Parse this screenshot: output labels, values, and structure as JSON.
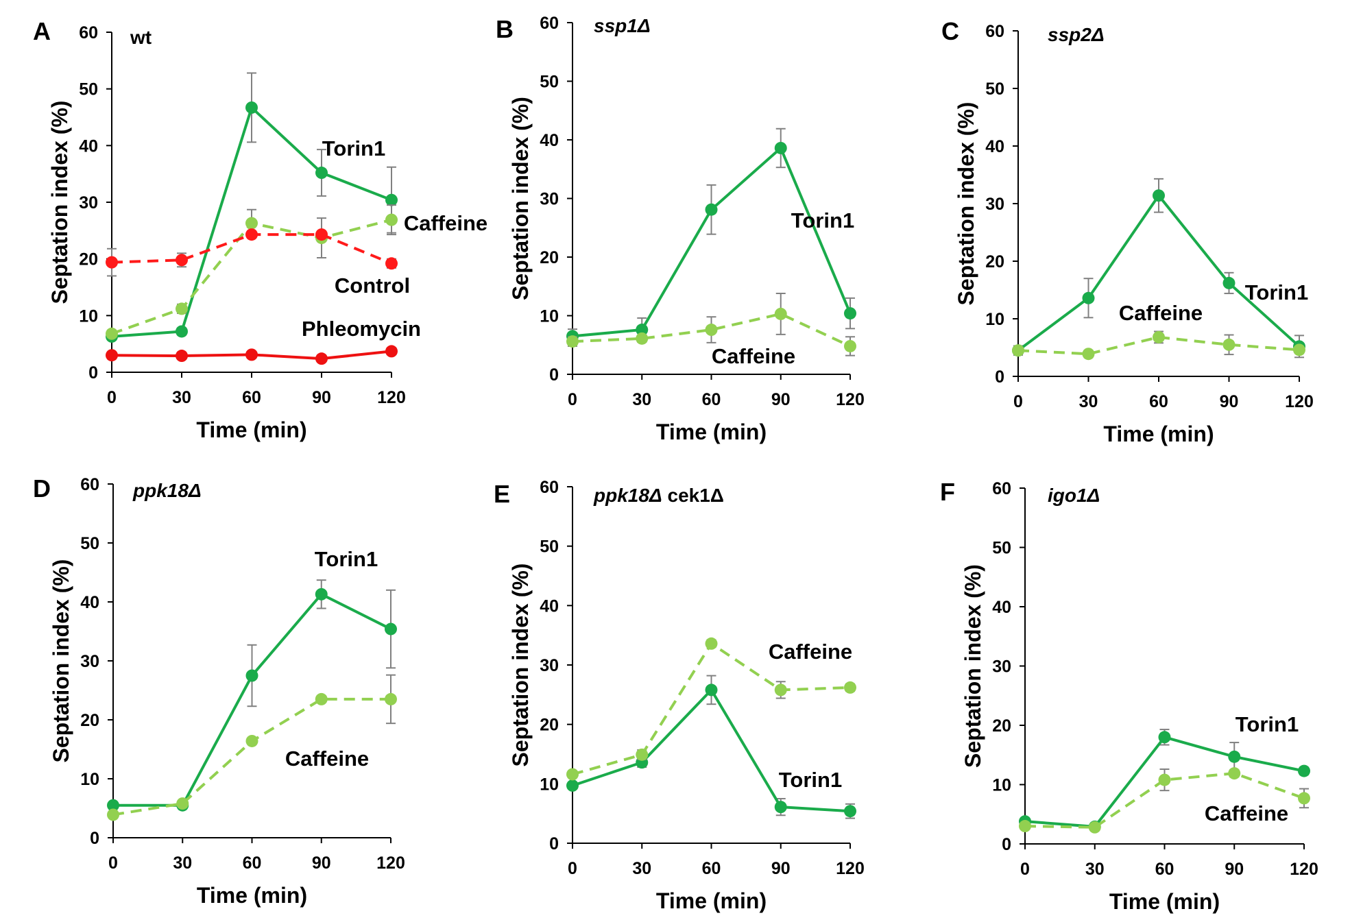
{
  "figure": {
    "colors": {
      "torin1": "#1aab4b",
      "caffeine": "#92d050",
      "control": "#ff1a1a",
      "phleomycin": "#ee1111",
      "errorbar": "#808080",
      "axis": "#000000"
    }
  },
  "chart_data": [
    {
      "type": "line",
      "panel": "A",
      "title": "wt",
      "title_italic": false,
      "xlabel": "Time (min)",
      "ylabel": "Septation index (%)",
      "x": [
        0,
        30,
        60,
        90,
        120
      ],
      "x_ticks": [
        "0",
        "30",
        "60",
        "90",
        "120"
      ],
      "y_ticks": [
        "0",
        "10",
        "20",
        "30",
        "40",
        "50",
        "60"
      ],
      "ylim": [
        0,
        60
      ],
      "series": [
        {
          "name": "Torin1",
          "style": "solid",
          "color": "#1aab4b",
          "values": [
            6.3,
            7.2,
            46.7,
            35.2,
            30.4
          ],
          "errors": [
            0.6,
            0.6,
            6.1,
            4.1,
            5.8
          ]
        },
        {
          "name": "Caffeine",
          "style": "dashed",
          "color": "#92d050",
          "values": [
            6.8,
            11.2,
            26.3,
            23.7,
            26.9
          ],
          "errors": [
            0.4,
            0.8,
            2.4,
            3.5,
            2.6
          ]
        },
        {
          "name": "Control",
          "style": "dashed",
          "color": "#ff1a1a",
          "values": [
            19.4,
            19.8,
            24.3,
            24.3,
            19.2
          ],
          "errors": [
            2.4,
            1.2,
            0.6,
            0.6,
            0.8
          ]
        },
        {
          "name": "Phleomycin",
          "style": "solid",
          "color": "#ee1111",
          "values": [
            3.0,
            2.9,
            3.1,
            2.4,
            3.7
          ],
          "errors": [
            0.3,
            0.3,
            0.3,
            0.3,
            0.3
          ]
        }
      ],
      "annotations": [
        "Torin1",
        "Caffeine",
        "Control",
        "Phleomycin"
      ]
    },
    {
      "type": "line",
      "panel": "B",
      "title": "ssp1Δ",
      "title_italic": true,
      "xlabel": "Time (min)",
      "ylabel": "Septation index (%)",
      "x": [
        0,
        30,
        60,
        90,
        120
      ],
      "x_ticks": [
        "0",
        "30",
        "60",
        "90",
        "120"
      ],
      "y_ticks": [
        "0",
        "10",
        "20",
        "30",
        "40",
        "50",
        "60"
      ],
      "ylim": [
        0,
        60
      ],
      "series": [
        {
          "name": "Torin1",
          "style": "solid",
          "color": "#1aab4b",
          "values": [
            6.5,
            7.6,
            28.1,
            38.6,
            10.4
          ],
          "errors": [
            1.2,
            2.0,
            4.2,
            3.3,
            2.6
          ]
        },
        {
          "name": "Caffeine",
          "style": "dashed",
          "color": "#92d050",
          "values": [
            5.6,
            6.1,
            7.6,
            10.3,
            4.8
          ],
          "errors": [
            0.8,
            0.6,
            2.2,
            3.5,
            1.6
          ]
        }
      ],
      "annotations": [
        "Torin1",
        "Caffeine"
      ]
    },
    {
      "type": "line",
      "panel": "C",
      "title": "ssp2Δ",
      "title_italic": true,
      "xlabel": "Time (min)",
      "ylabel": "Septation index (%)",
      "x": [
        0,
        30,
        60,
        90,
        120
      ],
      "x_ticks": [
        "0",
        "30",
        "60",
        "90",
        "120"
      ],
      "y_ticks": [
        "0",
        "10",
        "20",
        "30",
        "40",
        "50",
        "60"
      ],
      "ylim": [
        0,
        60
      ],
      "series": [
        {
          "name": "Torin1",
          "style": "solid",
          "color": "#1aab4b",
          "values": [
            4.5,
            13.6,
            31.4,
            16.2,
            5.2
          ],
          "errors": [
            0.8,
            3.4,
            2.9,
            1.8,
            1.9
          ]
        },
        {
          "name": "Caffeine",
          "style": "dashed",
          "color": "#92d050",
          "values": [
            4.5,
            3.9,
            6.8,
            5.5,
            4.6
          ],
          "errors": [
            0.4,
            0.6,
            1.0,
            1.7,
            0.6
          ]
        }
      ],
      "annotations": [
        "Torin1",
        "Caffeine"
      ]
    },
    {
      "type": "line",
      "panel": "D",
      "title": "ppk18Δ",
      "title_italic": true,
      "xlabel": "Time (min)",
      "ylabel": "Septation index (%)",
      "x": [
        0,
        30,
        60,
        90,
        120
      ],
      "x_ticks": [
        "0",
        "30",
        "60",
        "90",
        "120"
      ],
      "y_ticks": [
        "0",
        "10",
        "20",
        "30",
        "40",
        "50",
        "60"
      ],
      "ylim": [
        0,
        60
      ],
      "series": [
        {
          "name": "Torin1",
          "style": "solid",
          "color": "#1aab4b",
          "values": [
            5.5,
            5.5,
            27.5,
            41.3,
            35.4
          ],
          "errors": [
            0.4,
            0.4,
            5.2,
            2.4,
            6.6
          ]
        },
        {
          "name": "Caffeine",
          "style": "dashed",
          "color": "#92d050",
          "values": [
            3.9,
            5.8,
            16.4,
            23.5,
            23.5
          ],
          "errors": [
            0.4,
            0.4,
            0.5,
            0.5,
            4.1
          ]
        }
      ],
      "annotations": [
        "Torin1",
        "Caffeine"
      ]
    },
    {
      "type": "line",
      "panel": "E",
      "title": "ppk18Δ",
      "title_italic": true,
      "title_suffix": " cek1Δ",
      "xlabel": "Time (min)",
      "ylabel": "Septation index (%)",
      "x": [
        0,
        30,
        60,
        90,
        120
      ],
      "x_ticks": [
        "0",
        "30",
        "60",
        "90",
        "120"
      ],
      "y_ticks": [
        "0",
        "10",
        "20",
        "30",
        "40",
        "50",
        "60"
      ],
      "ylim": [
        0,
        60
      ],
      "series": [
        {
          "name": "Torin1",
          "style": "solid",
          "color": "#1aab4b",
          "values": [
            9.7,
            13.6,
            25.8,
            6.1,
            5.4
          ],
          "errors": [
            0.4,
            0.8,
            2.4,
            1.4,
            1.2
          ]
        },
        {
          "name": "Caffeine",
          "style": "dashed",
          "color": "#92d050",
          "values": [
            11.6,
            14.9,
            33.6,
            25.8,
            26.2
          ],
          "errors": [
            0.4,
            0.8,
            0.6,
            1.4,
            0.6
          ]
        }
      ],
      "annotations": [
        "Caffeine",
        "Torin1"
      ]
    },
    {
      "type": "line",
      "panel": "F",
      "title": "igo1Δ",
      "title_italic": true,
      "xlabel": "Time (min)",
      "ylabel": "Septation index (%)",
      "x": [
        0,
        30,
        60,
        90,
        120
      ],
      "x_ticks": [
        "0",
        "30",
        "60",
        "90",
        "120"
      ],
      "y_ticks": [
        "0",
        "10",
        "20",
        "30",
        "40",
        "50",
        "60"
      ],
      "ylim": [
        0,
        60
      ],
      "series": [
        {
          "name": "Torin1",
          "style": "solid",
          "color": "#1aab4b",
          "values": [
            3.8,
            2.9,
            18.0,
            14.7,
            12.3
          ],
          "errors": [
            0.4,
            0.4,
            1.3,
            2.4,
            0.6
          ]
        },
        {
          "name": "Caffeine",
          "style": "dashed",
          "color": "#92d050",
          "values": [
            3.0,
            2.8,
            10.8,
            11.9,
            7.7
          ],
          "errors": [
            0.4,
            0.4,
            1.8,
            0.6,
            1.6
          ]
        }
      ],
      "annotations": [
        "Torin1",
        "Caffeine"
      ]
    }
  ]
}
